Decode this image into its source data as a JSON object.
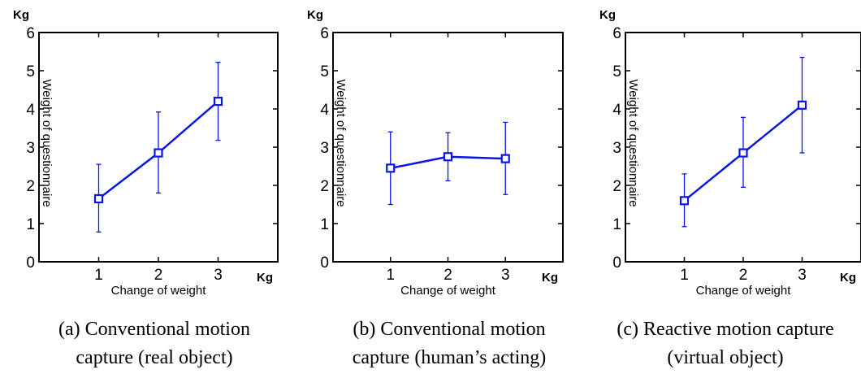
{
  "colors": {
    "series": "#0a14e6",
    "axis": "#000000"
  },
  "chart_data": [
    {
      "type": "line",
      "x": [
        1,
        2,
        3
      ],
      "values": [
        1.65,
        2.85,
        4.2
      ],
      "err_low": [
        0.78,
        1.8,
        3.18
      ],
      "err_high": [
        2.55,
        3.92,
        5.22
      ],
      "xlabel": "Change of weight",
      "ylabel": "Weight of questionnaire",
      "x_unit": "Kg",
      "y_unit": "Kg",
      "xlim": [
        0,
        4
      ],
      "ylim": [
        0,
        6
      ],
      "x_ticks": [
        1,
        2,
        3
      ],
      "y_ticks": [
        0,
        1,
        2,
        3,
        4,
        5,
        6
      ],
      "caption": [
        "(a) Conventional motion",
        "capture (real object)"
      ]
    },
    {
      "type": "line",
      "x": [
        1,
        2,
        3
      ],
      "values": [
        2.45,
        2.75,
        2.7
      ],
      "err_low": [
        1.5,
        2.12,
        1.76
      ],
      "err_high": [
        3.4,
        3.38,
        3.65
      ],
      "xlabel": "Change of weight",
      "ylabel": "Weight of questionnaire",
      "x_unit": "Kg",
      "y_unit": "Kg",
      "xlim": [
        0,
        4
      ],
      "ylim": [
        0,
        6
      ],
      "x_ticks": [
        1,
        2,
        3
      ],
      "y_ticks": [
        0,
        1,
        2,
        3,
        4,
        5,
        6
      ],
      "caption": [
        "(b) Conventional motion",
        "capture (human’s acting)"
      ]
    },
    {
      "type": "line",
      "x": [
        1,
        2,
        3
      ],
      "values": [
        1.6,
        2.85,
        4.1
      ],
      "err_low": [
        0.92,
        1.95,
        2.85
      ],
      "err_high": [
        2.3,
        3.78,
        5.35
      ],
      "xlabel": "Change of weight",
      "ylabel": "Weight of questionnaire",
      "x_unit": "Kg",
      "y_unit": "Kg",
      "xlim": [
        0,
        4
      ],
      "ylim": [
        0,
        6
      ],
      "x_ticks": [
        1,
        2,
        3
      ],
      "y_ticks": [
        0,
        1,
        2,
        3,
        4,
        5,
        6
      ],
      "caption": [
        "(c) Reactive motion capture",
        "(virtual object)"
      ]
    }
  ]
}
